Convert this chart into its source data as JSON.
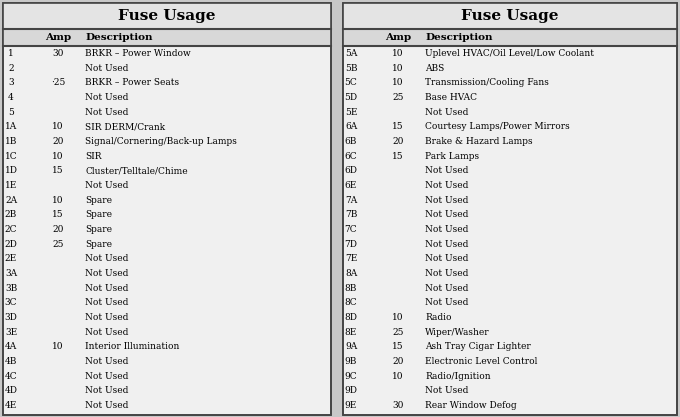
{
  "title": "Fuse Usage",
  "left_table": {
    "headers": [
      "",
      "Amp",
      "Description"
    ],
    "rows": [
      [
        "1",
        "30",
        "BRKR – Power Window"
      ],
      [
        "2",
        "",
        "Not Used"
      ],
      [
        "3",
        "·25",
        "BRKR – Power Seats"
      ],
      [
        "4",
        "",
        "Not Used"
      ],
      [
        "5",
        "",
        "Not Used"
      ],
      [
        "1A",
        "10",
        "SIR DERM/Crank"
      ],
      [
        "1B",
        "20",
        "Signal/Cornering/Back-up Lamps"
      ],
      [
        "1C",
        "10",
        "SIR"
      ],
      [
        "1D",
        "15",
        "Cluster/Telltale/Chime"
      ],
      [
        "1E",
        "",
        "Not Used"
      ],
      [
        "2A",
        "10",
        "Spare"
      ],
      [
        "2B",
        "15",
        "Spare"
      ],
      [
        "2C",
        "20",
        "Spare"
      ],
      [
        "2D",
        "25",
        "Spare"
      ],
      [
        "2E",
        "",
        "Not Used"
      ],
      [
        "3A",
        "",
        "Not Used"
      ],
      [
        "3B",
        "",
        "Not Used"
      ],
      [
        "3C",
        "",
        "Not Used"
      ],
      [
        "3D",
        "",
        "Not Used"
      ],
      [
        "3E",
        "",
        "Not Used"
      ],
      [
        "4A",
        "10",
        "Interior Illumination"
      ],
      [
        "4B",
        "",
        "Not Used"
      ],
      [
        "4C",
        "",
        "Not Used"
      ],
      [
        "4D",
        "",
        "Not Used"
      ],
      [
        "4E",
        "",
        "Not Used"
      ]
    ]
  },
  "right_table": {
    "headers": [
      "",
      "Amp",
      "Description"
    ],
    "rows": [
      [
        "5A",
        "10",
        "Uplevel HVAC/Oil Level/Low Coolant"
      ],
      [
        "5B",
        "10",
        "ABS"
      ],
      [
        "5C",
        "10",
        "Transmission/Cooling Fans"
      ],
      [
        "5D",
        "25",
        "Base HVAC"
      ],
      [
        "5E",
        "",
        "Not Used"
      ],
      [
        "6A",
        "15",
        "Courtesy Lamps/Power Mirrors"
      ],
      [
        "6B",
        "20",
        "Brake & Hazard Lamps"
      ],
      [
        "6C",
        "15",
        "Park Lamps"
      ],
      [
        "6D",
        "",
        "Not Used"
      ],
      [
        "6E",
        "",
        "Not Used"
      ],
      [
        "7A",
        "",
        "Not Used"
      ],
      [
        "7B",
        "",
        "Not Used"
      ],
      [
        "7C",
        "",
        "Not Used"
      ],
      [
        "7D",
        "",
        "Not Used"
      ],
      [
        "7E",
        "",
        "Not Used"
      ],
      [
        "8A",
        "",
        "Not Used"
      ],
      [
        "8B",
        "",
        "Not Used"
      ],
      [
        "8C",
        "",
        "Not Used"
      ],
      [
        "8D",
        "10",
        "Radio"
      ],
      [
        "8E",
        "25",
        "Wiper/Washer"
      ],
      [
        "9A",
        "15",
        "Ash Tray Cigar Lighter"
      ],
      [
        "9B",
        "20",
        "Electronic Level Control"
      ],
      [
        "9C",
        "10",
        "Radio/Ignition"
      ],
      [
        "9D",
        "",
        "Not Used"
      ],
      [
        "9E",
        "30",
        "Rear Window Defog"
      ]
    ]
  },
  "bg_color": "#c8c8c8",
  "table_bg": "#f0f0f0",
  "header_bg": "#d8d8d8",
  "title_bg": "#e4e4e4",
  "border_color": "#444444",
  "font_size": 6.5,
  "title_font_size": 11,
  "header_font_size": 7.5,
  "fig_width": 6.8,
  "fig_height": 4.17,
  "dpi": 100
}
